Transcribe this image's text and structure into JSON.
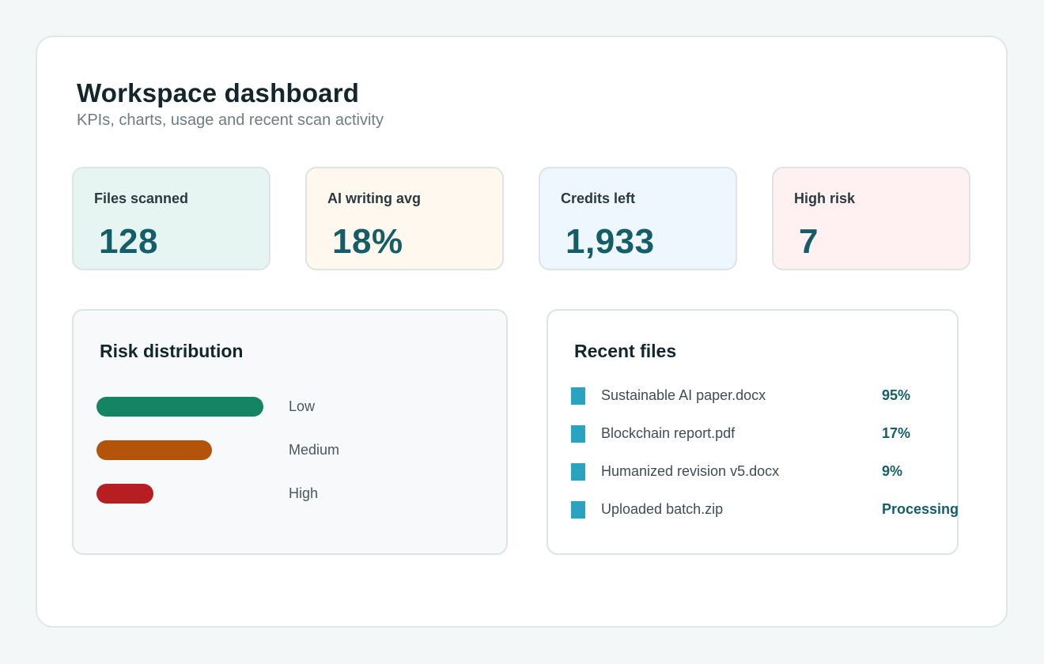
{
  "header": {
    "title": "Workspace dashboard",
    "subtitle": "KPIs, charts, usage and recent scan activity"
  },
  "kpis": [
    {
      "label": "Files scanned",
      "value": "128",
      "bg": "#e7f5f2"
    },
    {
      "label": "AI writing avg",
      "value": "18%",
      "bg": "#fff8ee"
    },
    {
      "label": "Credits left",
      "value": "1,933",
      "bg": "#eef6fe"
    },
    {
      "label": "High risk",
      "value": "7",
      "bg": "#fff1f1"
    }
  ],
  "risk_panel": {
    "title": "Risk distribution",
    "items": [
      {
        "label": "Low",
        "level": 1.0,
        "color": "#148462"
      },
      {
        "label": "Medium",
        "level": 0.69,
        "color": "#b4540a"
      },
      {
        "label": "High",
        "level": 0.34,
        "color": "#b71e22"
      }
    ]
  },
  "recent_files": {
    "title": "Recent files",
    "icon": "file-icon",
    "items": [
      {
        "name": "Sustainable AI paper.docx",
        "score": "95%"
      },
      {
        "name": "Blockchain report.pdf",
        "score": "17%"
      },
      {
        "name": "Humanized revision v5.docx",
        "score": "9%"
      },
      {
        "name": "Uploaded batch.zip",
        "score": "Processing"
      }
    ]
  }
}
